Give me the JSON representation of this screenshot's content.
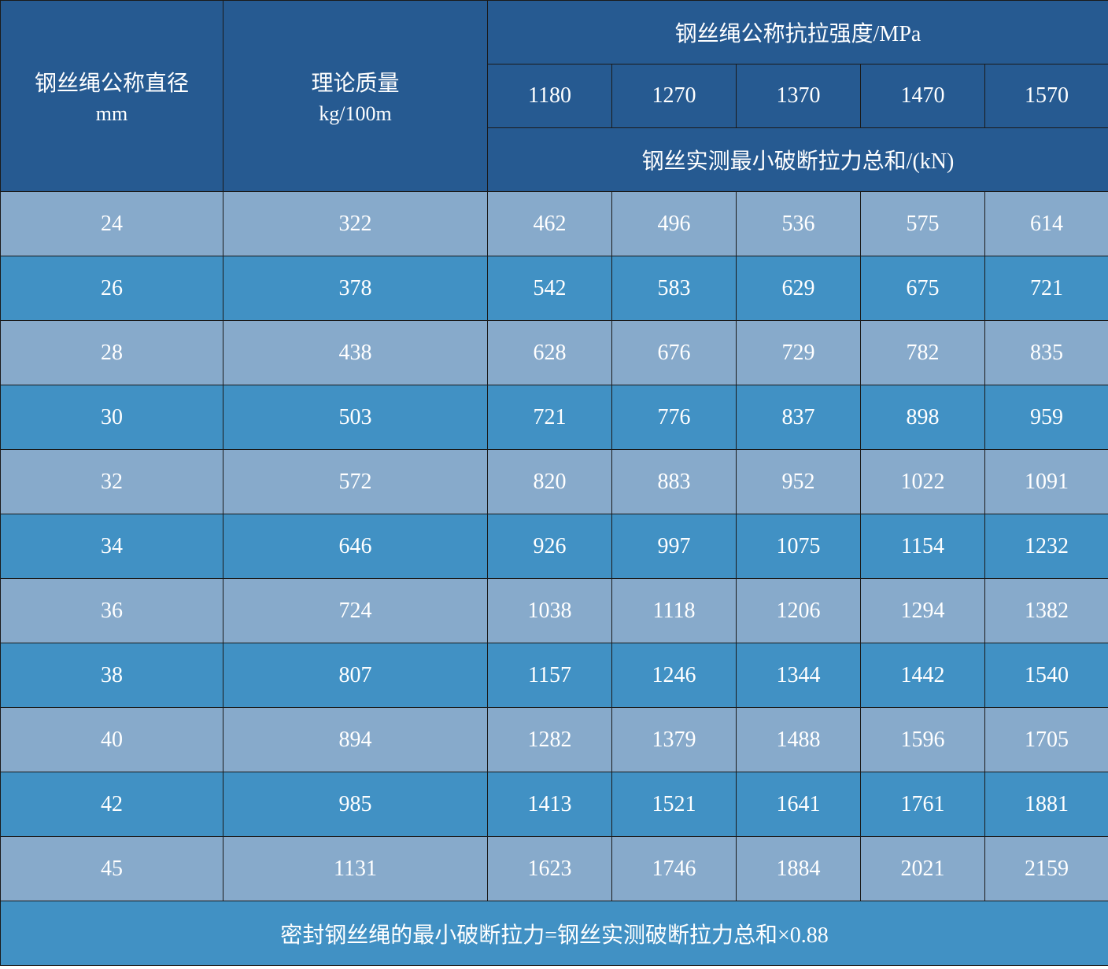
{
  "header": {
    "diameter_label": "钢丝绳公称直径",
    "diameter_unit": "mm",
    "mass_label": "理论质量",
    "mass_unit": "kg/100m",
    "strength_label": "钢丝绳公称抗拉强度/MPa",
    "strengths": [
      "1180",
      "1270",
      "1370",
      "1470",
      "1570"
    ],
    "force_label": "钢丝实测最小破断拉力总和/(kN)"
  },
  "rows": [
    {
      "d": "24",
      "m": "322",
      "v": [
        "462",
        "496",
        "536",
        "575",
        "614"
      ]
    },
    {
      "d": "26",
      "m": "378",
      "v": [
        "542",
        "583",
        "629",
        "675",
        "721"
      ]
    },
    {
      "d": "28",
      "m": "438",
      "v": [
        "628",
        "676",
        "729",
        "782",
        "835"
      ]
    },
    {
      "d": "30",
      "m": "503",
      "v": [
        "721",
        "776",
        "837",
        "898",
        "959"
      ]
    },
    {
      "d": "32",
      "m": "572",
      "v": [
        "820",
        "883",
        "952",
        "1022",
        "1091"
      ]
    },
    {
      "d": "34",
      "m": "646",
      "v": [
        "926",
        "997",
        "1075",
        "1154",
        "1232"
      ]
    },
    {
      "d": "36",
      "m": "724",
      "v": [
        "1038",
        "1118",
        "1206",
        "1294",
        "1382"
      ]
    },
    {
      "d": "38",
      "m": "807",
      "v": [
        "1157",
        "1246",
        "1344",
        "1442",
        "1540"
      ]
    },
    {
      "d": "40",
      "m": "894",
      "v": [
        "1282",
        "1379",
        "1488",
        "1596",
        "1705"
      ]
    },
    {
      "d": "42",
      "m": "985",
      "v": [
        "1413",
        "1521",
        "1641",
        "1761",
        "1881"
      ]
    },
    {
      "d": "45",
      "m": "1131",
      "v": [
        "1623",
        "1746",
        "1884",
        "2021",
        "2159"
      ]
    }
  ],
  "footer": "密封钢丝绳的最小破断拉力=钢丝实测破断拉力总和×0.88",
  "colors": {
    "header": "#265a91",
    "row_light": "#87aacb",
    "row_dark": "#4191c4"
  }
}
